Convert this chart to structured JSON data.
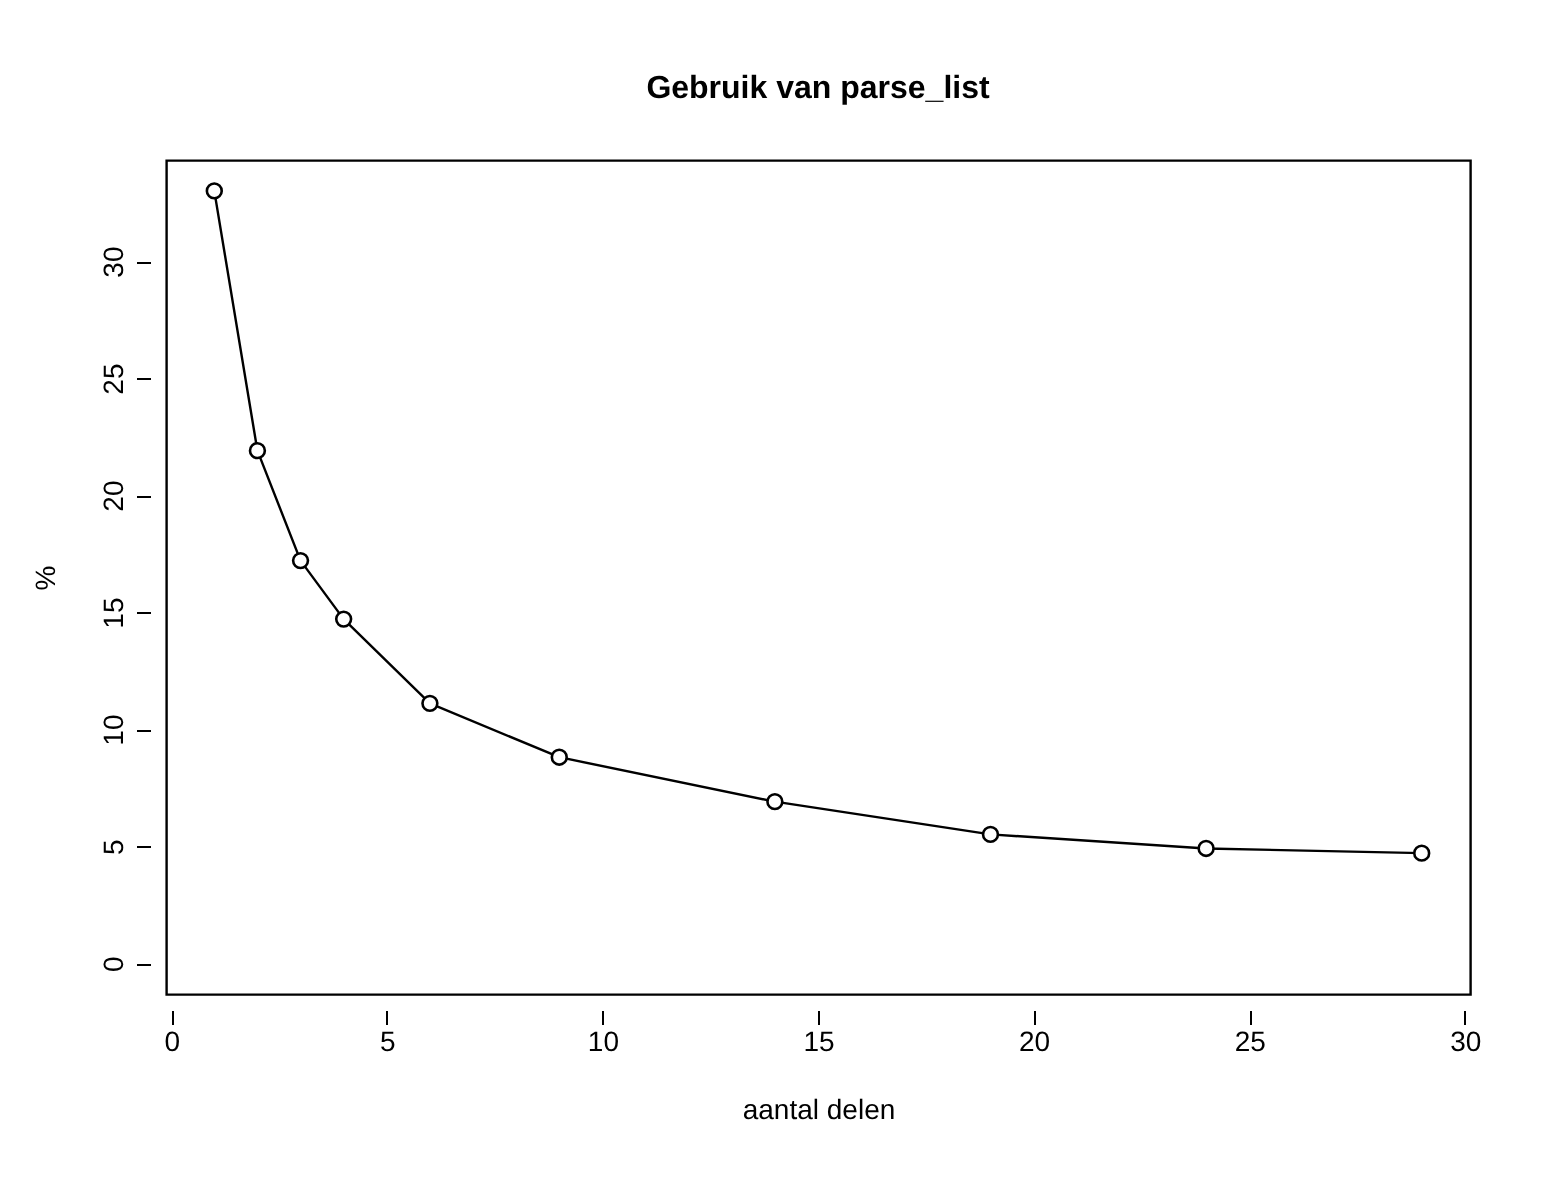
{
  "chart_data": {
    "type": "line",
    "title": "Gebruik van parse_list",
    "xlabel": "aantal delen",
    "ylabel": "%",
    "x": [
      1,
      2,
      3,
      4,
      6,
      9,
      14,
      19,
      24,
      29
    ],
    "series": [
      {
        "color": "#000000",
        "values": [
          33.0,
          21.9,
          17.2,
          14.7,
          11.1,
          8.8,
          6.9,
          5.5,
          4.9,
          4.7
        ]
      }
    ],
    "xlim": [
      -0.12,
      30.12
    ],
    "ylim": [
      -1.32,
      34.32
    ],
    "xticks": [
      0,
      5,
      10,
      15,
      20,
      25,
      30
    ],
    "yticks": [
      0,
      5,
      10,
      15,
      20,
      25,
      30
    ],
    "grid": false,
    "marker": "circle",
    "line_style": "solid"
  }
}
